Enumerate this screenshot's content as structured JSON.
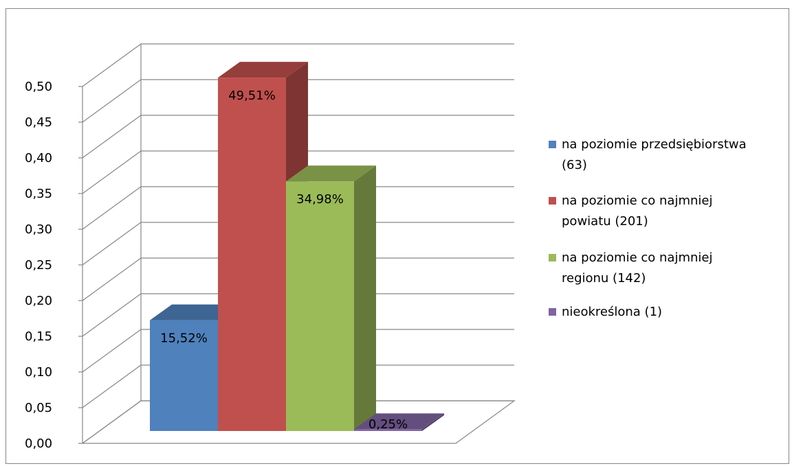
{
  "chart_data": {
    "type": "bar",
    "title": "",
    "xlabel": "",
    "ylabel": "",
    "ylim": [
      0,
      0.5
    ],
    "yticks": [
      "0,00",
      "0,05",
      "0,10",
      "0,15",
      "0,20",
      "0,25",
      "0,30",
      "0,35",
      "0,40",
      "0,45",
      "0,50"
    ],
    "grid": true,
    "legend_position": "right",
    "series": [
      {
        "name": "na poziomie przedsiębiorstwa (63)",
        "value": 0.1552,
        "label": "15,52%",
        "color": "#4F81BD",
        "legend_lines": [
          "na poziomie przedsiębiorstwa",
          "(63)"
        ]
      },
      {
        "name": "na poziomie co najmniej powiatu (201)",
        "value": 0.4951,
        "label": "49,51%",
        "color": "#C0504D",
        "legend_lines": [
          "na poziomie co najmniej",
          "powiatu (201)"
        ]
      },
      {
        "name": "na poziomie co najmniej regionu (142)",
        "value": 0.3498,
        "label": "34,98%",
        "color": "#9BBB59",
        "legend_lines": [
          "na poziomie co najmniej",
          "regionu (142)"
        ]
      },
      {
        "name": "nieokreślona (1)",
        "value": 0.0025,
        "label": "0,25%",
        "color": "#8064A2",
        "legend_lines": [
          "nieokreślona (1)"
        ]
      }
    ]
  }
}
